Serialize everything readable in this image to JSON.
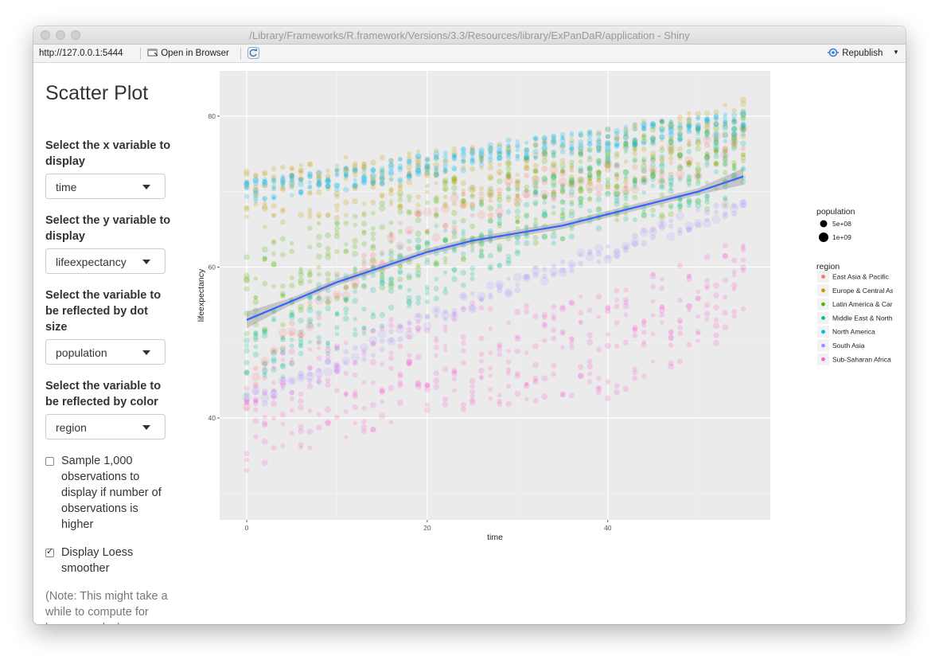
{
  "window": {
    "title": "/Library/Frameworks/R.framework/Versions/3.3/Resources/library/ExPanDaR/application - Shiny"
  },
  "toolbar": {
    "url": "http://127.0.0.1:5444",
    "open_browser_label": "Open in Browser",
    "republish_label": "Republish"
  },
  "sidebar": {
    "title": "Scatter Plot",
    "x_label": "Select the x variable to display",
    "x_value": "time",
    "y_label": "Select the y variable to display",
    "y_value": "lifeexpectancy",
    "size_label": "Select the variable to be reflected by dot size",
    "size_value": "population",
    "color_label": "Select the variable to be reflected by color",
    "color_value": "region",
    "sample_label": "Sample 1,000 observations to display if number of observations is higher",
    "sample_checked": false,
    "loess_label": "Display Loess smoother",
    "loess_checked": true,
    "note": "(Note: This might take a while to compute for large samples)"
  },
  "chart_data": {
    "type": "scatter",
    "xlabel": "time",
    "ylabel": "lifeexpectancy",
    "xlim": [
      -3,
      58
    ],
    "ylim": [
      26.5,
      86
    ],
    "x_ticks": [
      0,
      20,
      40
    ],
    "y_ticks": [
      40,
      60,
      80
    ],
    "grid": true,
    "legend_position": "right",
    "size_legend": {
      "title": "population",
      "entries": [
        "5e+08",
        "1e+09"
      ]
    },
    "color_legend": {
      "title": "region",
      "entries": [
        {
          "name": "East Asia & Pacific",
          "color": "#F8766D"
        },
        {
          "name": "Europe & Central Asia",
          "color": "#C49A00"
        },
        {
          "name": "Latin America & Caribbean",
          "color": "#53B400"
        },
        {
          "name": "Middle East & North Africa",
          "color": "#00C094"
        },
        {
          "name": "North America",
          "color": "#00B6EB"
        },
        {
          "name": "South Asia",
          "color": "#A58AFF"
        },
        {
          "name": "Sub-Saharan Africa",
          "color": "#FB61D7"
        }
      ]
    },
    "series": [
      {
        "name": "East Asia & Pacific",
        "x": [
          0,
          10,
          20,
          30,
          40,
          50,
          55
        ],
        "y": [
          44,
          57,
          66,
          70,
          72,
          74.5,
          76
        ]
      },
      {
        "name": "Europe & Central Asia",
        "x": [
          0,
          10,
          20,
          30,
          40,
          50,
          55
        ],
        "y": [
          69,
          70.5,
          71.5,
          72.5,
          74.5,
          77,
          78.5
        ]
      },
      {
        "name": "Latin America & Caribbean",
        "x": [
          0,
          10,
          20,
          30,
          40,
          50,
          55
        ],
        "y": [
          56,
          61,
          65,
          68.5,
          71,
          73.5,
          74.5
        ]
      },
      {
        "name": "Middle East & North Africa",
        "x": [
          0,
          10,
          20,
          30,
          40,
          50,
          55
        ],
        "y": [
          48,
          54,
          60,
          66,
          70.5,
          73,
          74
        ]
      },
      {
        "name": "North America",
        "x": [
          0,
          10,
          20,
          30,
          40,
          50,
          55
        ],
        "y": [
          70,
          71.5,
          73.5,
          75.5,
          77,
          78.5,
          79
        ]
      },
      {
        "name": "South Asia",
        "x": [
          0,
          10,
          20,
          30,
          40,
          50,
          55
        ],
        "y": [
          42,
          47,
          53,
          58,
          62,
          66.5,
          68.5
        ]
      },
      {
        "name": "Sub-Saharan Africa",
        "x": [
          0,
          10,
          20,
          30,
          40,
          50,
          55
        ],
        "y": [
          40,
          44,
          47.5,
          49,
          49.5,
          55,
          58
        ]
      }
    ],
    "loess": {
      "x": [
        0,
        5,
        10,
        15,
        20,
        25,
        30,
        35,
        40,
        45,
        50,
        55
      ],
      "y": [
        53,
        55.5,
        58,
        60,
        62,
        63.5,
        64.5,
        65.5,
        67,
        68.5,
        70,
        72
      ]
    }
  }
}
